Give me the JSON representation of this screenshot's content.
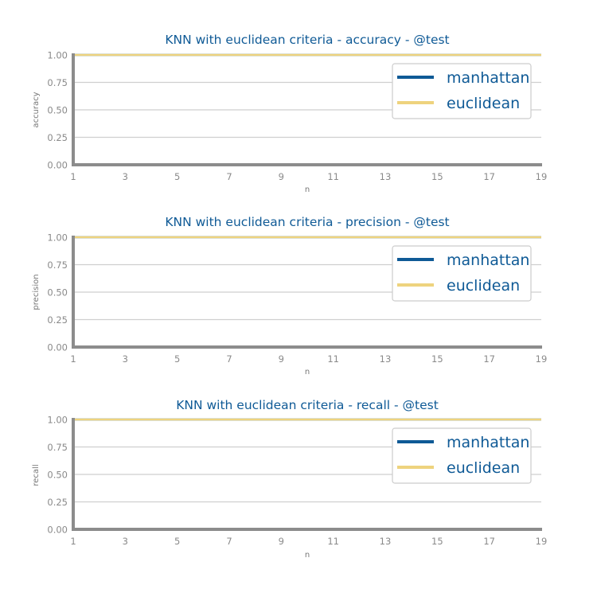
{
  "colors": {
    "manhattan": "#0f5a96",
    "euclidean": "#eed37e",
    "axis": "#8c8c8c",
    "grid": "#cfcfcf",
    "title": "#0f5a96",
    "tick": "#8a8a8a"
  },
  "chart_data": [
    {
      "type": "line",
      "title": "KNN with euclidean criteria - accuracy - @test",
      "xlabel": "n",
      "ylabel": "accuracy",
      "x": [
        1,
        3,
        5,
        7,
        9,
        11,
        13,
        15,
        17,
        19
      ],
      "xticks": [
        "1",
        "3",
        "5",
        "7",
        "9",
        "11",
        "13",
        "15",
        "17",
        "19"
      ],
      "yticks": [
        "0.00",
        "0.25",
        "0.50",
        "0.75",
        "1.00"
      ],
      "xlim": [
        1,
        19
      ],
      "ylim": [
        0,
        1
      ],
      "grid": "horizontal",
      "legend_position": "top-right",
      "series": [
        {
          "name": "manhattan",
          "values": [
            1.0,
            1.0,
            1.0,
            1.0,
            1.0,
            1.0,
            1.0,
            1.0,
            1.0,
            1.0
          ]
        },
        {
          "name": "euclidean",
          "values": [
            1.0,
            1.0,
            1.0,
            1.0,
            1.0,
            1.0,
            1.0,
            1.0,
            1.0,
            1.0
          ]
        }
      ]
    },
    {
      "type": "line",
      "title": "KNN with euclidean criteria - precision - @test",
      "xlabel": "n",
      "ylabel": "precision",
      "x": [
        1,
        3,
        5,
        7,
        9,
        11,
        13,
        15,
        17,
        19
      ],
      "xticks": [
        "1",
        "3",
        "5",
        "7",
        "9",
        "11",
        "13",
        "15",
        "17",
        "19"
      ],
      "yticks": [
        "0.00",
        "0.25",
        "0.50",
        "0.75",
        "1.00"
      ],
      "xlim": [
        1,
        19
      ],
      "ylim": [
        0,
        1
      ],
      "grid": "horizontal",
      "legend_position": "top-right",
      "series": [
        {
          "name": "manhattan",
          "values": [
            1.0,
            1.0,
            1.0,
            1.0,
            1.0,
            1.0,
            1.0,
            1.0,
            1.0,
            1.0
          ]
        },
        {
          "name": "euclidean",
          "values": [
            1.0,
            1.0,
            1.0,
            1.0,
            1.0,
            1.0,
            1.0,
            1.0,
            1.0,
            1.0
          ]
        }
      ]
    },
    {
      "type": "line",
      "title": "KNN with euclidean criteria - recall - @test",
      "xlabel": "n",
      "ylabel": "recall",
      "x": [
        1,
        3,
        5,
        7,
        9,
        11,
        13,
        15,
        17,
        19
      ],
      "xticks": [
        "1",
        "3",
        "5",
        "7",
        "9",
        "11",
        "13",
        "15",
        "17",
        "19"
      ],
      "yticks": [
        "0.00",
        "0.25",
        "0.50",
        "0.75",
        "1.00"
      ],
      "xlim": [
        1,
        19
      ],
      "ylim": [
        0,
        1
      ],
      "grid": "horizontal",
      "legend_position": "top-right",
      "series": [
        {
          "name": "manhattan",
          "values": [
            1.0,
            1.0,
            1.0,
            1.0,
            1.0,
            1.0,
            1.0,
            1.0,
            1.0,
            1.0
          ]
        },
        {
          "name": "euclidean",
          "values": [
            1.0,
            1.0,
            1.0,
            1.0,
            1.0,
            1.0,
            1.0,
            1.0,
            1.0,
            1.0
          ]
        }
      ]
    }
  ]
}
